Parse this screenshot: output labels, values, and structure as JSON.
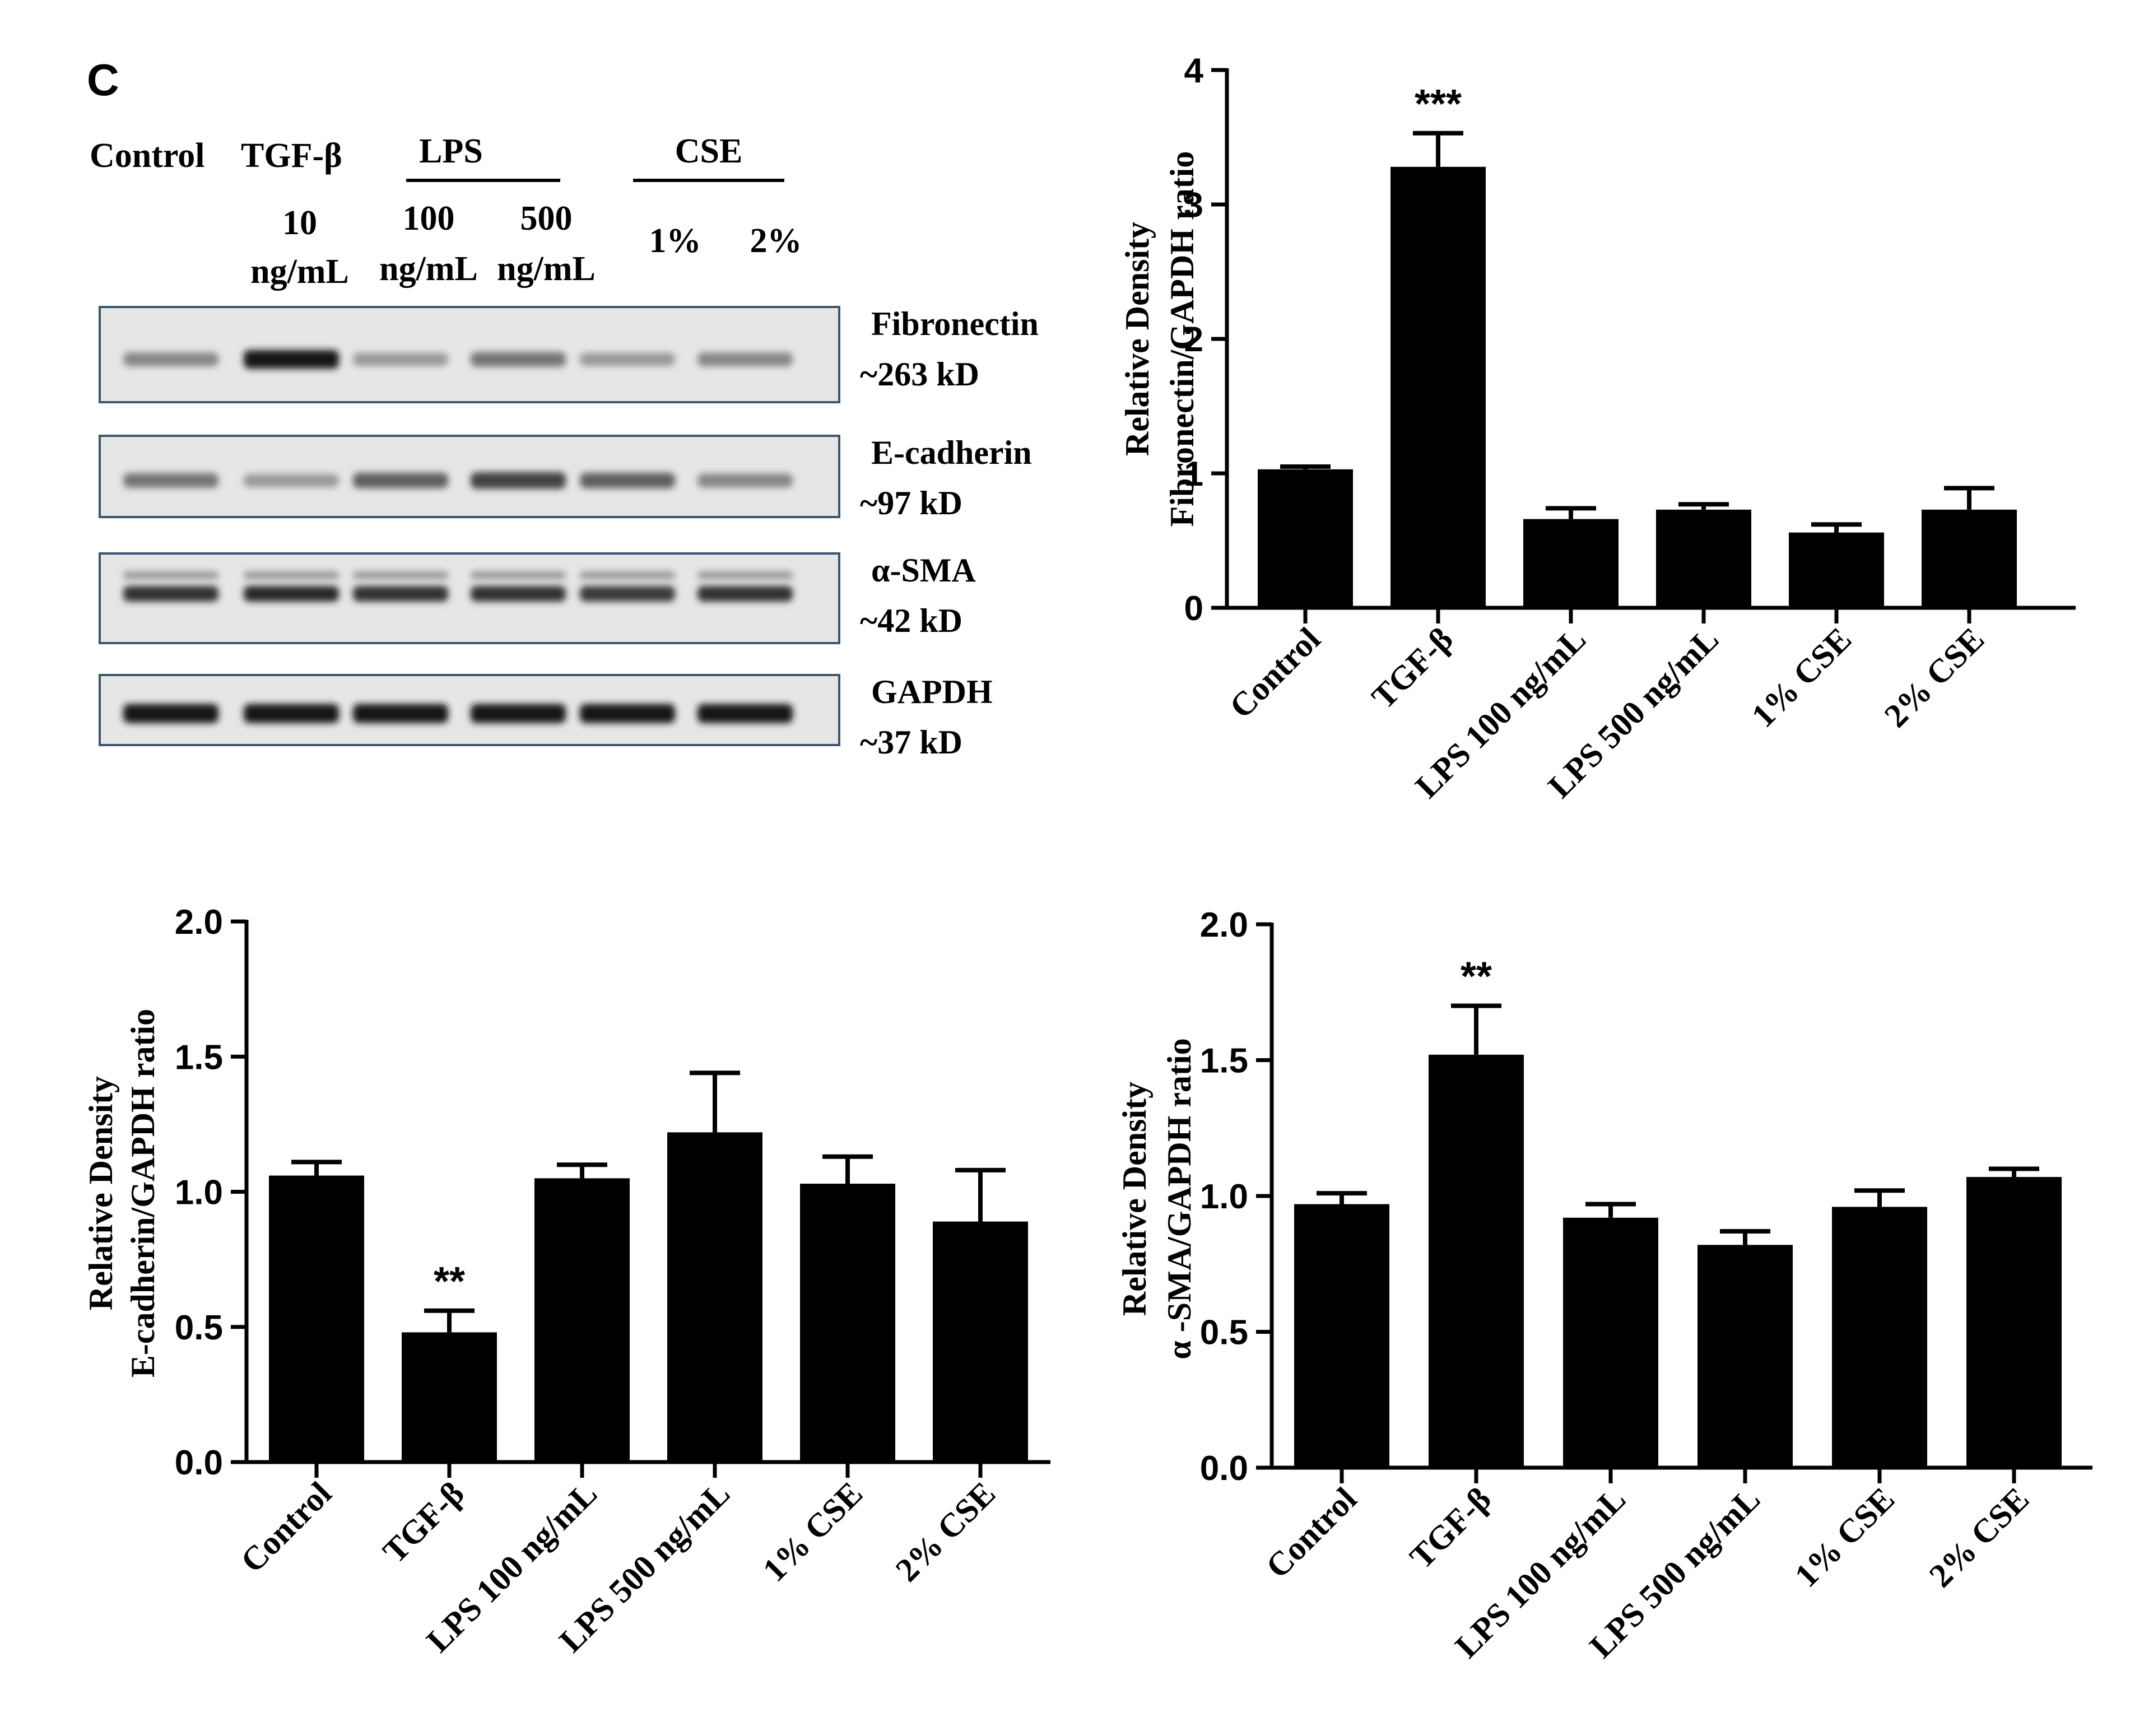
{
  "panel_label": "C",
  "blot": {
    "header": {
      "control": "Control",
      "tgf": "TGF-β",
      "lps": "LPS",
      "cse": "CSE",
      "tgf_dose_1": "10",
      "tgf_dose_2": "ng/mL",
      "lps100_1": "100",
      "lps100_2": "ng/mL",
      "lps500_1": "500",
      "lps500_2": "ng/mL",
      "cse1": "1%",
      "cse2": "2%"
    },
    "strips": [
      {
        "name": "Fibronectin",
        "size": "~263 kD",
        "intensity": [
          0.35,
          0.95,
          0.25,
          0.45,
          0.25,
          0.35
        ]
      },
      {
        "name": "E-cadherin",
        "size": "~97 kD",
        "intensity": [
          0.45,
          0.25,
          0.55,
          0.7,
          0.55,
          0.35
        ]
      },
      {
        "name": "α-SMA",
        "size": "~42 kD",
        "intensity": [
          0.8,
          0.85,
          0.8,
          0.8,
          0.75,
          0.8
        ]
      },
      {
        "name": "GAPDH",
        "size": "~37 kD",
        "intensity": [
          0.95,
          0.95,
          0.95,
          0.95,
          0.95,
          0.95
        ]
      }
    ]
  },
  "chart_data": [
    {
      "type": "bar",
      "categories": [
        "Control",
        "TGF-β",
        "LPS 100 ng/mL",
        "LPS 500 ng/mL",
        "1% CSE",
        "2% CSE"
      ],
      "values": [
        1.03,
        3.28,
        0.66,
        0.73,
        0.56,
        0.73
      ],
      "errors": [
        0.02,
        0.25,
        0.08,
        0.04,
        0.06,
        0.16
      ],
      "annotations": [
        "",
        "***",
        "",
        "",
        "",
        ""
      ],
      "ylabel_1": "Relative Density",
      "ylabel_2": "Fibronectin/GAPDH ratio",
      "ylim": [
        0,
        4
      ],
      "yticks": [
        "0",
        "1",
        "2",
        "3",
        "4"
      ],
      "ytick_values": [
        0,
        1,
        2,
        3,
        4
      ],
      "bar_color": "#000000"
    },
    {
      "type": "bar",
      "categories": [
        "Control",
        "TGF-β",
        "LPS 100 ng/mL",
        "LPS 500 ng/mL",
        "1% CSE",
        "2% CSE"
      ],
      "values": [
        1.06,
        0.48,
        1.05,
        1.22,
        1.03,
        0.89
      ],
      "errors": [
        0.05,
        0.08,
        0.05,
        0.22,
        0.1,
        0.19
      ],
      "annotations": [
        "",
        "**",
        "",
        "",
        "",
        ""
      ],
      "ylabel_1": "Relative Density",
      "ylabel_2": "E-cadherin/GAPDH ratio",
      "ylim": [
        0,
        2
      ],
      "yticks": [
        "0.0",
        "0.5",
        "1.0",
        "1.5",
        "2.0"
      ],
      "ytick_values": [
        0,
        0.5,
        1,
        1.5,
        2
      ],
      "bar_color": "#000000"
    },
    {
      "type": "bar",
      "categories": [
        "Control",
        "TGF-β",
        "LPS 100 ng/mL",
        "LPS 500 ng/mL",
        "1% CSE",
        "2% CSE"
      ],
      "values": [
        0.97,
        1.52,
        0.92,
        0.82,
        0.96,
        1.07
      ],
      "errors": [
        0.04,
        0.18,
        0.05,
        0.05,
        0.06,
        0.03
      ],
      "annotations": [
        "",
        "**",
        "",
        "",
        "",
        ""
      ],
      "ylabel_1": "Relative Density",
      "ylabel_2": "α -SMA/GAPDH ratio",
      "ylim": [
        0,
        2
      ],
      "yticks": [
        "0.0",
        "0.5",
        "1.0",
        "1.5",
        "2.0"
      ],
      "ytick_values": [
        0,
        0.5,
        1,
        1.5,
        2
      ],
      "bar_color": "#000000"
    }
  ]
}
